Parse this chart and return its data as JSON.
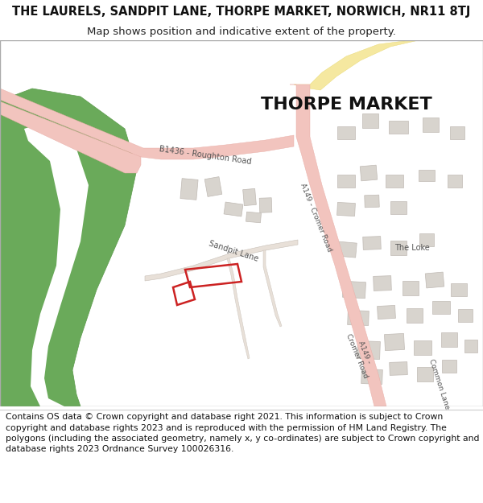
{
  "title_line1": "THE LAURELS, SANDPIT LANE, THORPE MARKET, NORWICH, NR11 8TJ",
  "title_line2": "Map shows position and indicative extent of the property.",
  "footer_text": "Contains OS data © Crown copyright and database right 2021. This information is subject to Crown copyright and database rights 2023 and is reproduced with the permission of HM Land Registry. The polygons (including the associated geometry, namely x, y co-ordinates) are subject to Crown copyright and database rights 2023 Ordnance Survey 100026316.",
  "bg_color": "#ffffff",
  "map_bg": "#ffffff",
  "road_pink": "#f2c4be",
  "road_pink_edge": "#e8aba4",
  "road_yellow": "#f5e8a0",
  "road_yellow_edge": "#e8d870",
  "green_color": "#6aaa5a",
  "green_edge": "#5a9a4a",
  "building_color": "#d8d4ce",
  "building_edge": "#c0bab4",
  "plot_color": "#cc2222",
  "title_fontsize": 10.5,
  "subtitle_fontsize": 9.5,
  "footer_fontsize": 7.8,
  "thorpe_fontsize": 16,
  "road_label_fontsize": 7,
  "small_label_fontsize": 6.5
}
